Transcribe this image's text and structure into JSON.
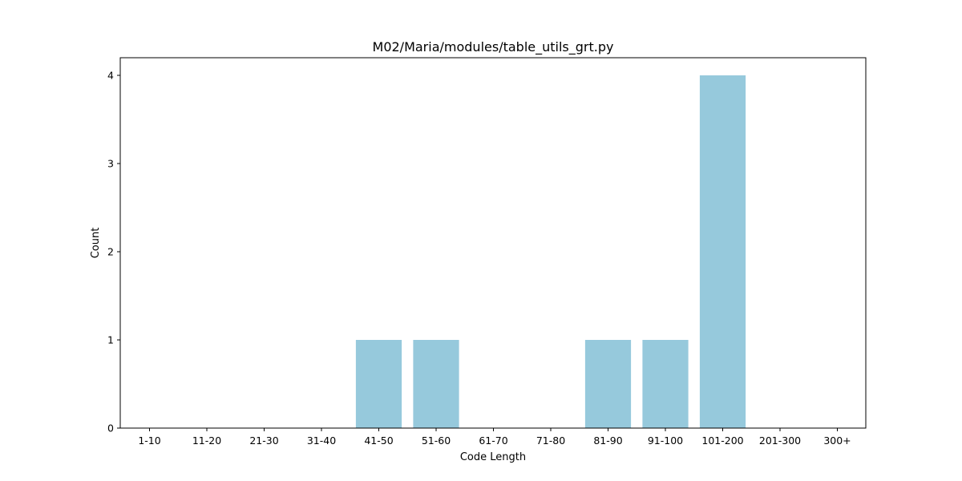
{
  "chart_data": {
    "type": "bar",
    "title": "M02/Maria/modules/table_utils_grt.py",
    "xlabel": "Code Length",
    "ylabel": "Count",
    "categories": [
      "1-10",
      "11-20",
      "21-30",
      "31-40",
      "41-50",
      "51-60",
      "61-70",
      "71-80",
      "81-90",
      "91-100",
      "101-200",
      "201-300",
      "300+"
    ],
    "values": [
      0,
      0,
      0,
      0,
      1,
      1,
      0,
      0,
      1,
      1,
      4,
      0,
      0
    ],
    "yticks": [
      0,
      1,
      2,
      3,
      4
    ],
    "ylim": [
      0,
      4.2
    ],
    "bar_color": "#96c9dc",
    "grid": false,
    "legend": "none"
  }
}
